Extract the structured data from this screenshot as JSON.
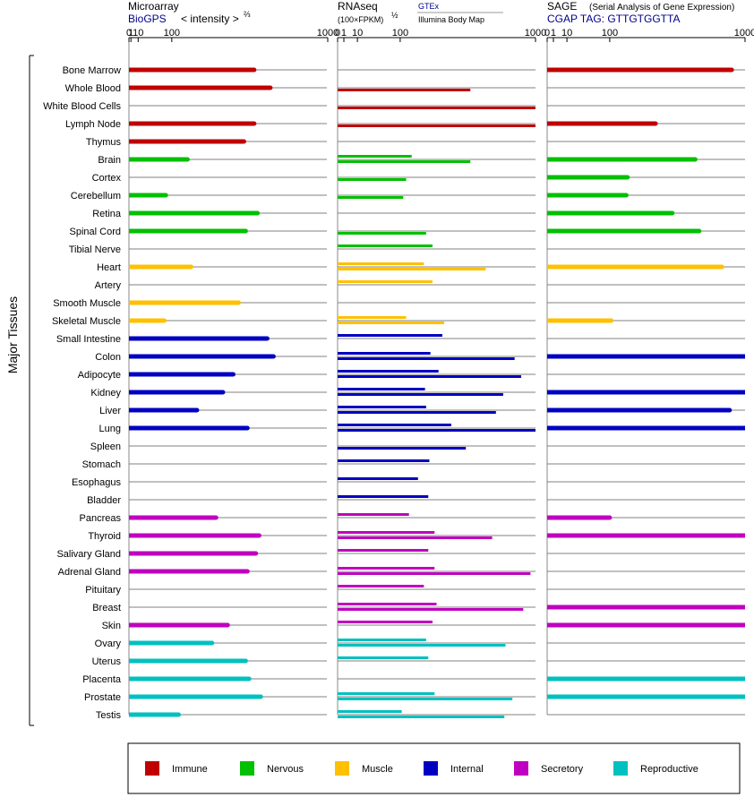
{
  "axis_label": "Major Tissues",
  "colors": {
    "Immune": "#c00000",
    "Nervous": "#00c000",
    "Muscle": "#ffc000",
    "Internal": "#0000c0",
    "Secretory": "#c000c0",
    "Reproductive": "#00c0c0"
  },
  "legend": [
    {
      "label": "Immune",
      "color": "#c00000"
    },
    {
      "label": "Nervous",
      "color": "#00c000"
    },
    {
      "label": "Muscle",
      "color": "#ffc000"
    },
    {
      "label": "Internal",
      "color": "#0000c0"
    },
    {
      "label": "Secretory",
      "color": "#c000c0"
    },
    {
      "label": "Reproductive",
      "color": "#00c0c0"
    }
  ],
  "panels": {
    "microarray": {
      "title": "Microarray",
      "source": "BioGPS",
      "scale_label": "< intensity >",
      "scale_exp": "⅔",
      "ticks": [
        "0",
        "1",
        "10",
        "100",
        "1000"
      ]
    },
    "rnaseq": {
      "title": "RNAseq",
      "scale_label": "(100×FPKM)",
      "scale_exp": "½",
      "source_1": "GTEx",
      "source_2": "Illumina Body Map",
      "ticks": [
        "0",
        "1",
        "10",
        "100",
        "1000"
      ]
    },
    "sage": {
      "title": "SAGE",
      "subtitle": "(Serial Analysis of Gene Expression)",
      "tag": "CGAP TAG: GTTGTGGTTA",
      "ticks": [
        "0",
        "1",
        "10",
        "100",
        "1000"
      ]
    }
  },
  "chart_data": {
    "type": "bar",
    "scale": "power",
    "note_scales": {
      "microarray": "intensity^(2/3)",
      "rnaseq": "(100xFPKM)^(1/2)"
    },
    "xlim": [
      0,
      1000
    ],
    "tissues": [
      {
        "name": "Bone Marrow",
        "group": "Immune",
        "microarray": 500,
        "gtex": null,
        "ibm": null,
        "sage": 870
      },
      {
        "name": "Whole Blood",
        "group": "Immune",
        "microarray": 600,
        "gtex": null,
        "ibm": 450,
        "sage": null
      },
      {
        "name": "White Blood Cells",
        "group": "Immune",
        "microarray": null,
        "gtex": null,
        "ibm": 1050,
        "sage": null
      },
      {
        "name": "Lymph Node",
        "group": "Immune",
        "microarray": 500,
        "gtex": null,
        "ibm": 1050,
        "sage": 300
      },
      {
        "name": "Thymus",
        "group": "Immune",
        "microarray": 440,
        "gtex": null,
        "ibm": null,
        "sage": null
      },
      {
        "name": "Brain",
        "group": "Nervous",
        "microarray": 160,
        "gtex": 140,
        "ibm": 450,
        "sage": 560
      },
      {
        "name": "Cortex",
        "group": "Nervous",
        "microarray": null,
        "gtex": null,
        "ibm": 120,
        "sage": 165
      },
      {
        "name": "Cerebellum",
        "group": "Nervous",
        "microarray": 80,
        "gtex": null,
        "ibm": 110,
        "sage": 160
      },
      {
        "name": "Retina",
        "group": "Nervous",
        "microarray": 520,
        "gtex": null,
        "ibm": null,
        "sage": 400
      },
      {
        "name": "Spinal Cord",
        "group": "Nervous",
        "microarray": 450,
        "gtex": null,
        "ibm": 200,
        "sage": 590
      },
      {
        "name": "Tibial Nerve",
        "group": "Nervous",
        "microarray": null,
        "gtex": 230,
        "ibm": null,
        "sage": null
      },
      {
        "name": "Heart",
        "group": "Muscle",
        "microarray": 175,
        "gtex": 190,
        "ibm": 560,
        "sage": 780
      },
      {
        "name": "Artery",
        "group": "Muscle",
        "microarray": null,
        "gtex": 230,
        "ibm": null,
        "sage": null
      },
      {
        "name": "Smooth Muscle",
        "group": "Muscle",
        "microarray": 410,
        "gtex": null,
        "ibm": null,
        "sage": null
      },
      {
        "name": "Skeletal Muscle",
        "group": "Muscle",
        "microarray": 75,
        "gtex": 120,
        "ibm": 290,
        "sage": 105
      },
      {
        "name": "Small Intestine",
        "group": "Internal",
        "microarray": 580,
        "gtex": 280,
        "ibm": null,
        "sage": null
      },
      {
        "name": "Colon",
        "group": "Internal",
        "microarray": 620,
        "gtex": 220,
        "ibm": 800,
        "sage": 1000
      },
      {
        "name": "Adipocyte",
        "group": "Internal",
        "microarray": 380,
        "gtex": 260,
        "ibm": 860,
        "sage": null
      },
      {
        "name": "Kidney",
        "group": "Internal",
        "microarray": 325,
        "gtex": 195,
        "ibm": 700,
        "sage": 1050
      },
      {
        "name": "Liver",
        "group": "Internal",
        "microarray": 200,
        "gtex": 200,
        "ibm": 640,
        "sage": 850
      },
      {
        "name": "Lung",
        "group": "Internal",
        "microarray": 460,
        "gtex": 330,
        "ibm": 1050,
        "sage": 1050
      },
      {
        "name": "Spleen",
        "group": "Internal",
        "microarray": null,
        "gtex": null,
        "ibm": 420,
        "sage": null
      },
      {
        "name": "Stomach",
        "group": "Internal",
        "microarray": null,
        "gtex": 215,
        "ibm": null,
        "sage": null
      },
      {
        "name": "Esophagus",
        "group": "Internal",
        "microarray": null,
        "gtex": 165,
        "ibm": null,
        "sage": null
      },
      {
        "name": "Bladder",
        "group": "Internal",
        "microarray": null,
        "gtex": 210,
        "ibm": null,
        "sage": null
      },
      {
        "name": "Pancreas",
        "group": "Secretory",
        "microarray": 290,
        "gtex": 130,
        "ibm": null,
        "sage": 100
      },
      {
        "name": "Thyroid",
        "group": "Secretory",
        "microarray": 530,
        "gtex": 240,
        "ibm": 610,
        "sage": 1050
      },
      {
        "name": "Salivary Gland",
        "group": "Secretory",
        "microarray": 510,
        "gtex": 210,
        "ibm": null,
        "sage": null
      },
      {
        "name": "Adrenal Gland",
        "group": "Secretory",
        "microarray": 460,
        "gtex": 240,
        "ibm": 950,
        "sage": null
      },
      {
        "name": "Pituitary",
        "group": "Secretory",
        "microarray": null,
        "gtex": 190,
        "ibm": null,
        "sage": null
      },
      {
        "name": "Breast",
        "group": "Secretory",
        "microarray": null,
        "gtex": 250,
        "ibm": 880,
        "sage": 1050
      },
      {
        "name": "Skin",
        "group": "Secretory",
        "microarray": 350,
        "gtex": 230,
        "ibm": null,
        "sage": 1050
      },
      {
        "name": "Ovary",
        "group": "Reproductive",
        "microarray": 270,
        "gtex": 200,
        "ibm": 720,
        "sage": null
      },
      {
        "name": "Uterus",
        "group": "Reproductive",
        "microarray": 450,
        "gtex": 210,
        "ibm": null,
        "sage": null
      },
      {
        "name": "Placenta",
        "group": "Reproductive",
        "microarray": 470,
        "gtex": null,
        "ibm": null,
        "sage": 1050
      },
      {
        "name": "Prostate",
        "group": "Reproductive",
        "microarray": 540,
        "gtex": 240,
        "ibm": 780,
        "sage": 1050
      },
      {
        "name": "Testis",
        "group": "Reproductive",
        "microarray": 125,
        "gtex": 105,
        "ibm": 710,
        "sage": null
      }
    ]
  }
}
